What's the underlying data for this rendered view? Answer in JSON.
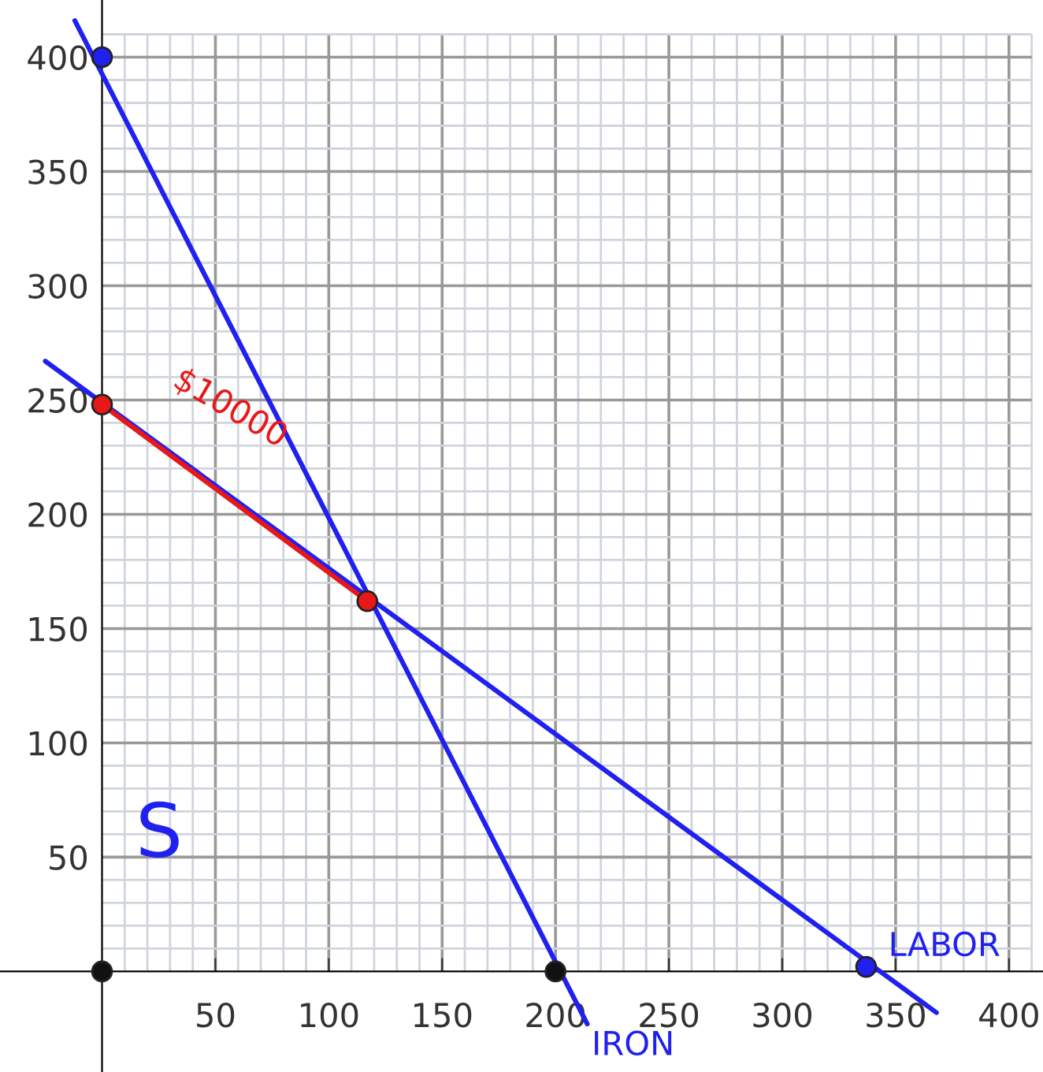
{
  "chart_data": {
    "type": "line",
    "xlim": [
      -45,
      415
    ],
    "ylim": [
      -44,
      425
    ],
    "xticks": [
      50,
      100,
      150,
      200,
      250,
      300,
      350,
      400
    ],
    "yticks": [
      50,
      100,
      150,
      200,
      250,
      300,
      350,
      400
    ],
    "grid": true,
    "series": [
      {
        "name": "IRON",
        "color": "#2020f0",
        "x": [
          -12,
          214
        ],
        "values": [
          416,
          -23
        ]
      },
      {
        "name": "LABOR",
        "color": "#2020f0",
        "x": [
          -25,
          368
        ],
        "values": [
          267,
          -18
        ]
      },
      {
        "name": "$10000",
        "color": "#e81818",
        "x": [
          0,
          117
        ],
        "values": [
          248,
          162
        ]
      },
      {
        "type": "scatter",
        "marker": "circle",
        "x": [
          0,
          0,
          117,
          0,
          200,
          337
        ],
        "values": [
          400,
          248,
          162,
          0,
          0,
          2
        ],
        "colors": [
          "#2020f0",
          "#e81818",
          "#e81818",
          "#111111",
          "#111111",
          "#2020f0"
        ]
      }
    ],
    "annotations": [
      "S"
    ]
  }
}
